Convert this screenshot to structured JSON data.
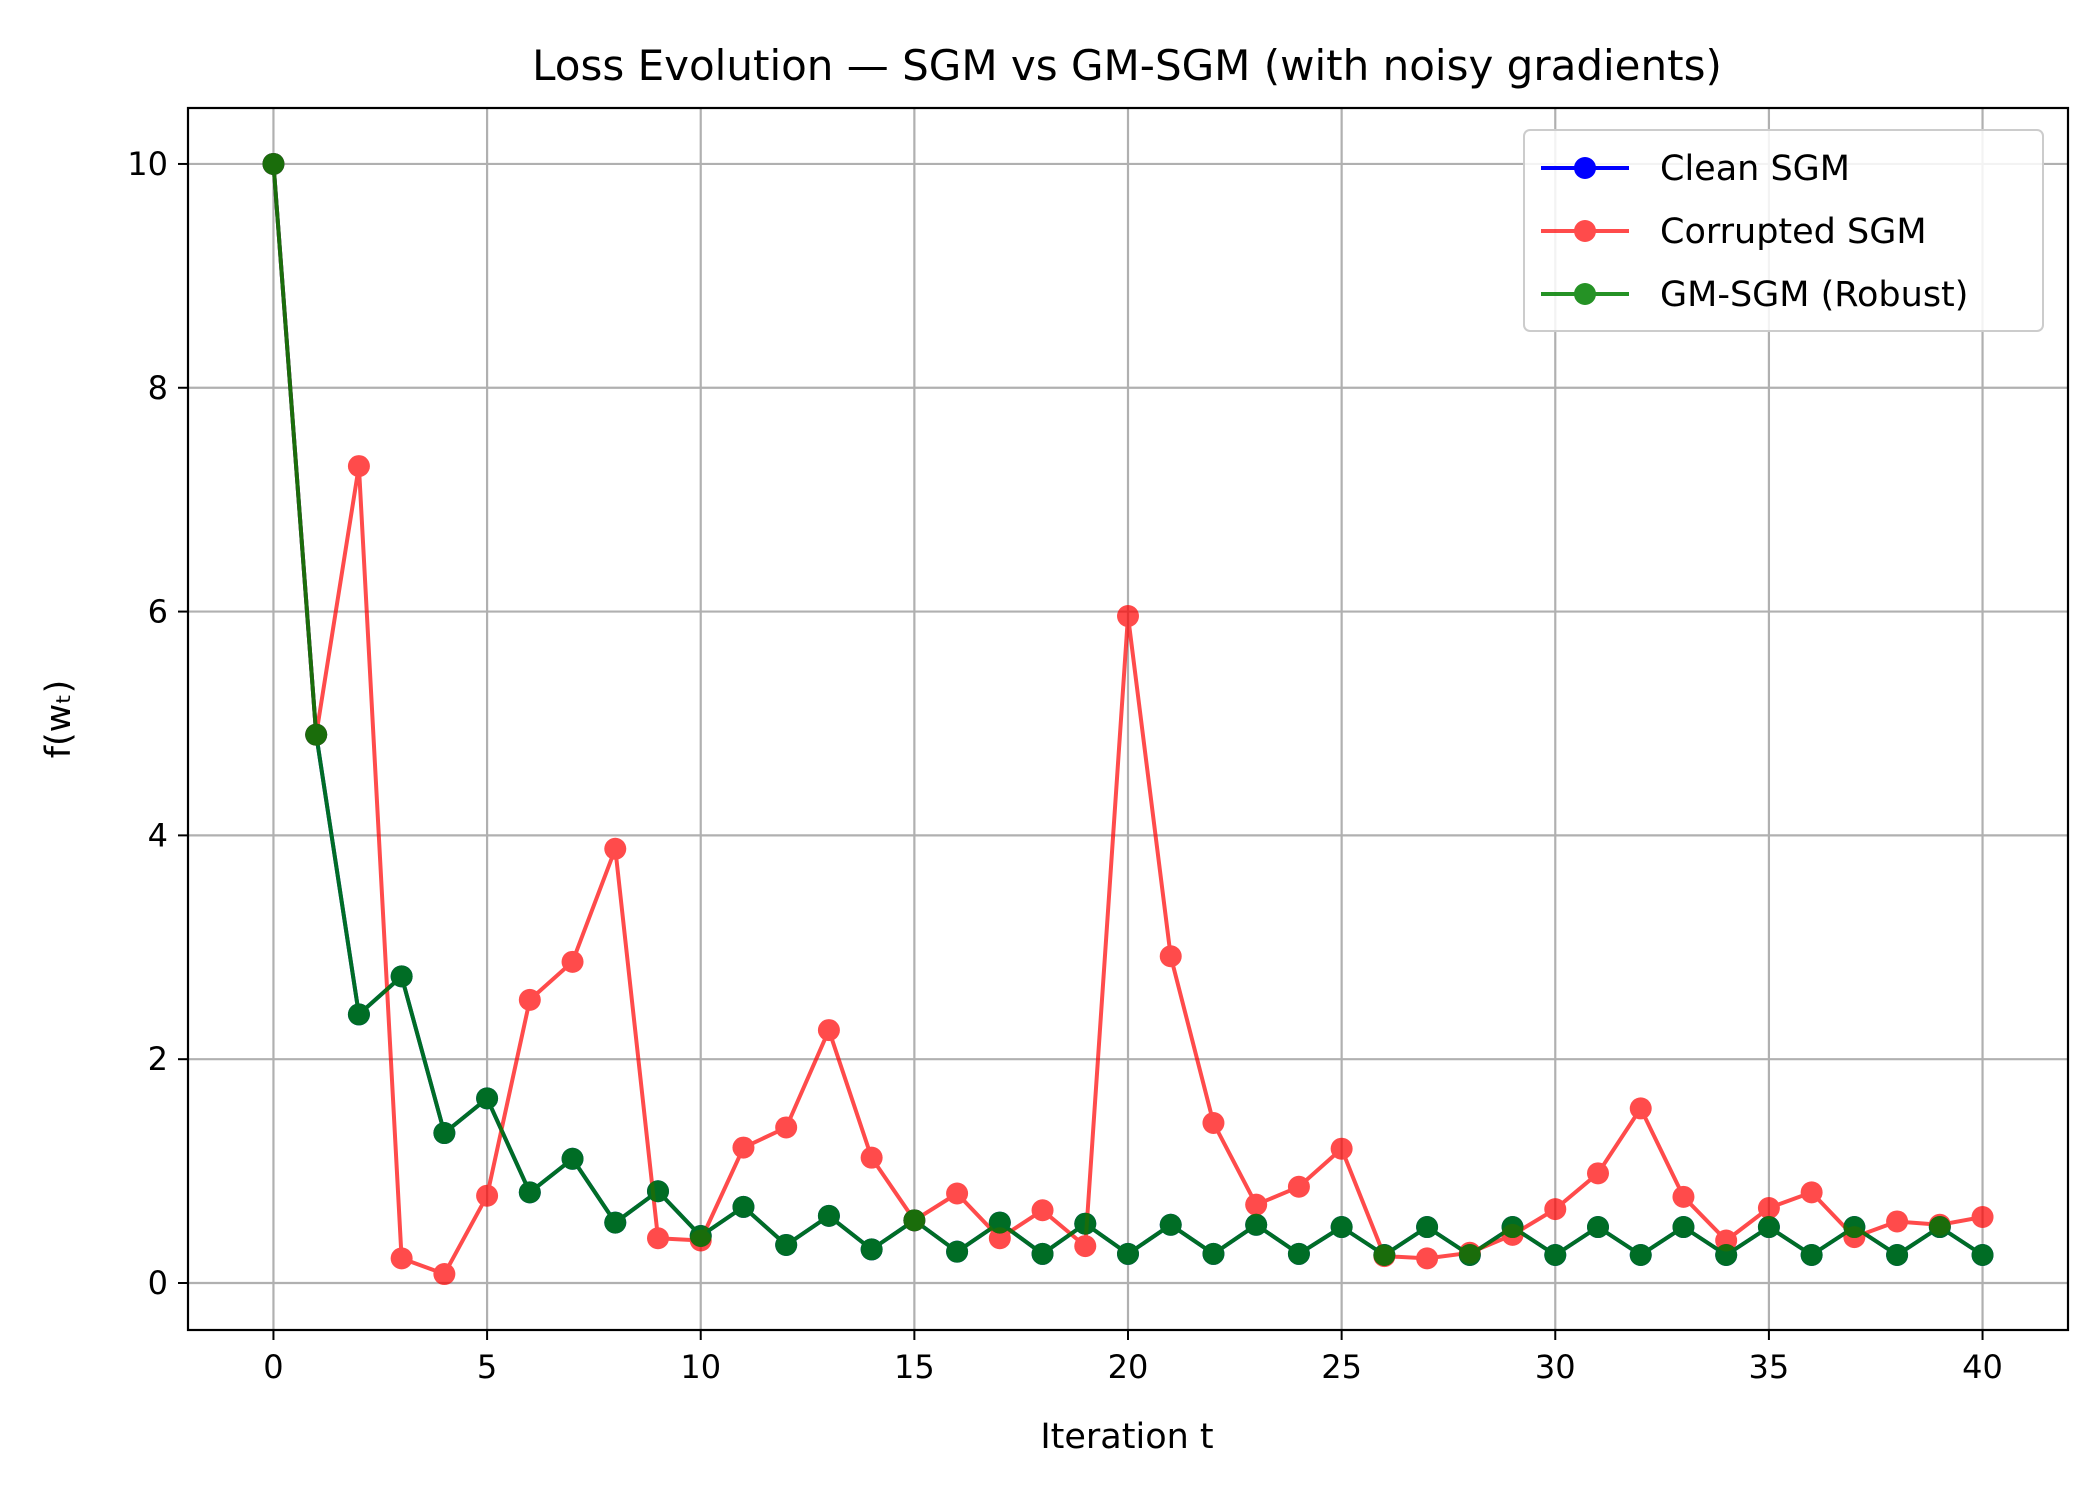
{
  "chart_data": {
    "type": "line",
    "title": "Loss Evolution — SGM vs GM-SGM (with noisy gradients)",
    "xlabel": "Iteration t",
    "ylabel": "f(wₜ)",
    "xlim": [
      -2,
      42
    ],
    "ylim": [
      -0.42,
      10.5
    ],
    "xticks": [
      0,
      5,
      10,
      15,
      20,
      25,
      30,
      35,
      40
    ],
    "yticks": [
      0,
      2,
      4,
      6,
      8,
      10
    ],
    "grid": true,
    "legend_position": "top-right",
    "x": [
      0,
      1,
      2,
      3,
      4,
      5,
      6,
      7,
      8,
      9,
      10,
      11,
      12,
      13,
      14,
      15,
      16,
      17,
      18,
      19,
      20,
      21,
      22,
      23,
      24,
      25,
      26,
      27,
      28,
      29,
      30,
      31,
      32,
      33,
      34,
      35,
      36,
      37,
      38,
      39,
      40
    ],
    "series": [
      {
        "name": "Clean SGM",
        "color": "#0000ff",
        "opacity": 1.0,
        "values": [
          10,
          4.9,
          2.4,
          2.74,
          1.34,
          1.65,
          0.81,
          1.11,
          0.54,
          0.82,
          0.42,
          0.68,
          0.34,
          0.6,
          0.3,
          0.56,
          0.28,
          0.54,
          0.26,
          0.53,
          0.26,
          0.52,
          0.26,
          0.52,
          0.26,
          0.5,
          0.25,
          0.5,
          0.25,
          0.5,
          0.25,
          0.5,
          0.25,
          0.5,
          0.25,
          0.5,
          0.25,
          0.5,
          0.25,
          0.5,
          0.25
        ]
      },
      {
        "name": "Corrupted SGM",
        "color": "#ff0000",
        "opacity": 0.7,
        "values": [
          10,
          4.9,
          7.3,
          0.22,
          0.08,
          0.78,
          2.53,
          2.87,
          3.88,
          0.4,
          0.38,
          1.21,
          1.39,
          2.26,
          1.12,
          0.56,
          0.8,
          0.4,
          0.65,
          0.33,
          5.96,
          2.92,
          1.43,
          0.7,
          0.86,
          1.2,
          0.24,
          0.22,
          0.27,
          0.43,
          0.66,
          0.98,
          1.56,
          0.77,
          0.38,
          0.67,
          0.81,
          0.41,
          0.55,
          0.52,
          0.59
        ]
      },
      {
        "name": "GM-SGM (Robust)",
        "color": "#008000",
        "opacity": 0.85,
        "values": [
          10,
          4.9,
          2.4,
          2.74,
          1.34,
          1.65,
          0.81,
          1.11,
          0.54,
          0.82,
          0.42,
          0.68,
          0.34,
          0.6,
          0.3,
          0.56,
          0.28,
          0.54,
          0.26,
          0.53,
          0.26,
          0.52,
          0.26,
          0.52,
          0.26,
          0.5,
          0.25,
          0.5,
          0.25,
          0.5,
          0.25,
          0.5,
          0.25,
          0.5,
          0.25,
          0.5,
          0.25,
          0.5,
          0.25,
          0.5,
          0.25
        ]
      }
    ]
  }
}
